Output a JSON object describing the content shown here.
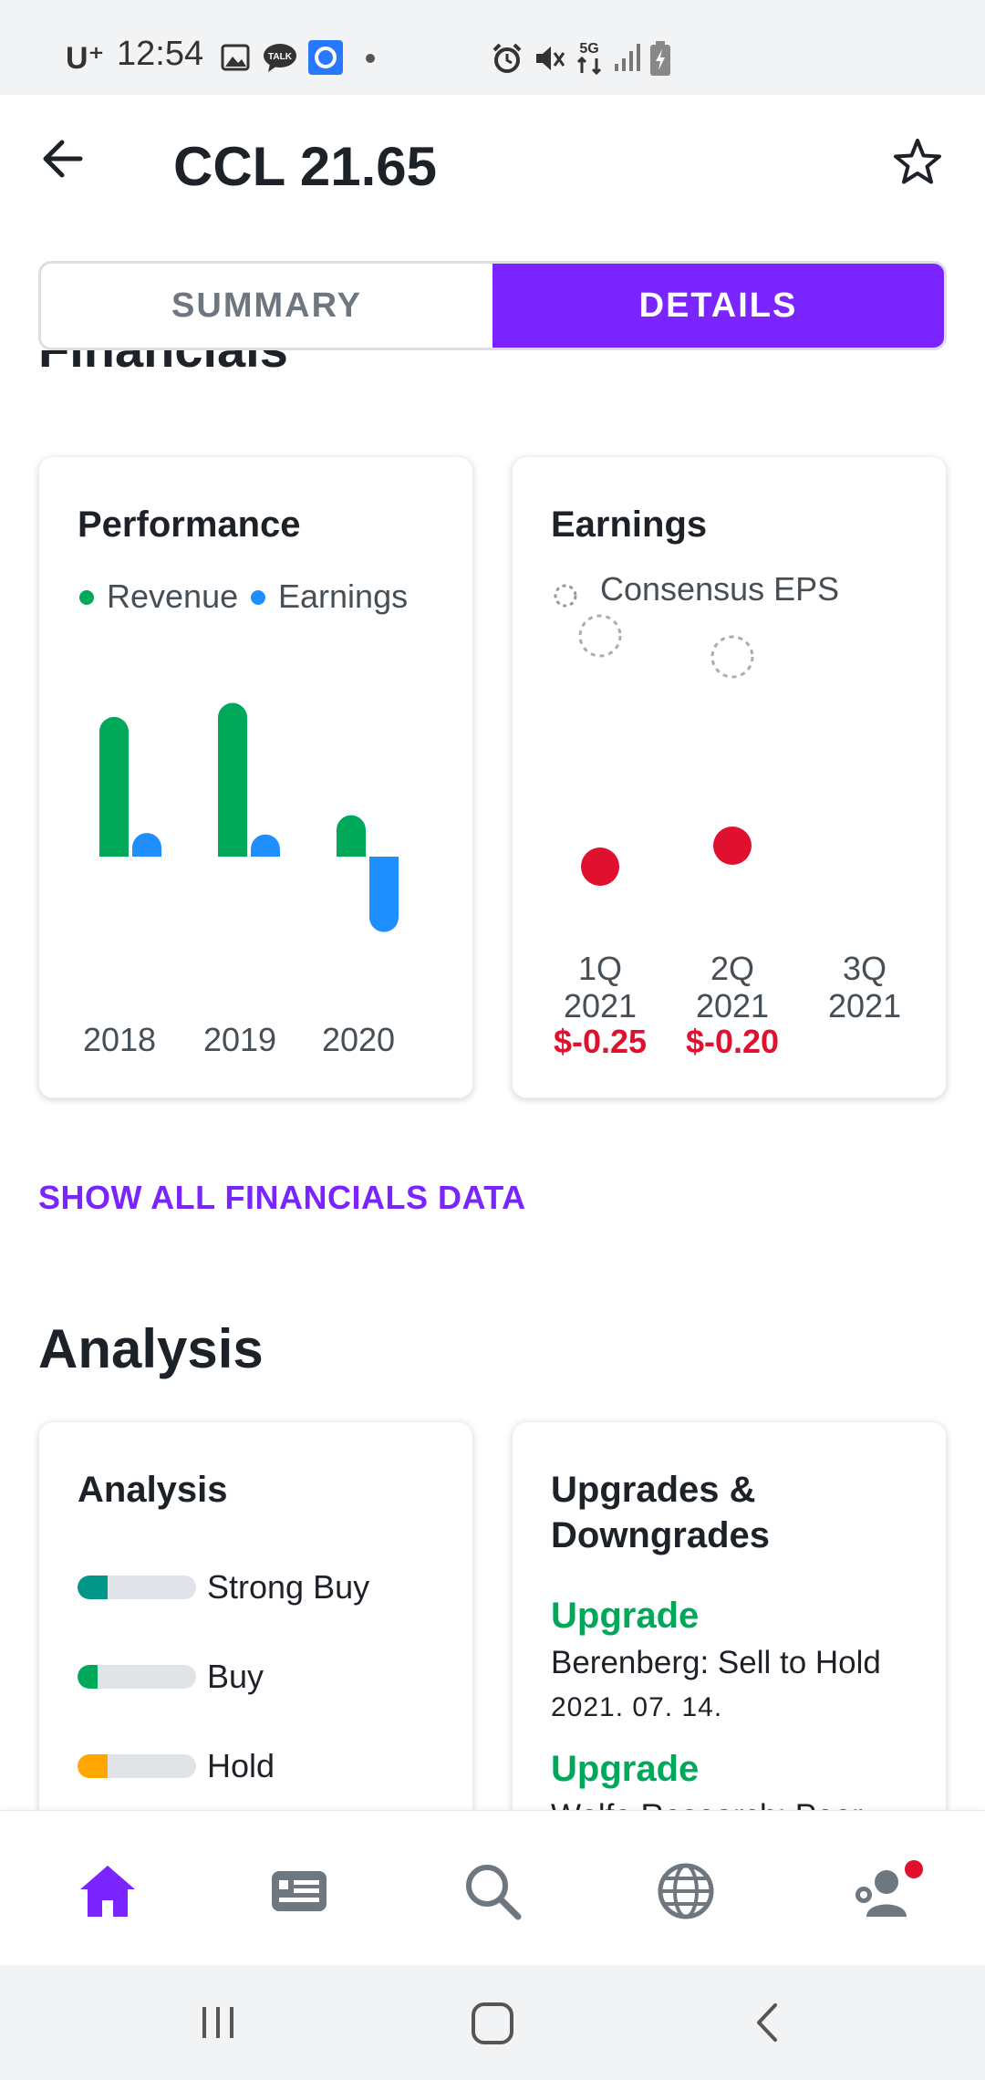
{
  "status_bar": {
    "carrier": "U⁺",
    "time": "12:54"
  },
  "header": {
    "title": "CCL 21.65"
  },
  "tabs": [
    {
      "label": "SUMMARY",
      "active": false
    },
    {
      "label": "DETAILS",
      "active": true
    }
  ],
  "financials": {
    "section_title": "Financials",
    "performance": {
      "title": "Performance",
      "legend": [
        "Revenue",
        "Earnings"
      ],
      "colors": {
        "revenue": "#00a85a",
        "earnings": "#1f8fff"
      }
    },
    "earnings": {
      "title": "Earnings",
      "legend": "Consensus EPS",
      "quarters": [
        {
          "label": "1Q\n2021",
          "line1": "1Q",
          "line2": "2021",
          "actual": "$-0.25"
        },
        {
          "label": "2Q\n2021",
          "line1": "2Q",
          "line2": "2021",
          "actual": "$-0.20"
        },
        {
          "label": "3Q\n2021",
          "line1": "3Q",
          "line2": "2021",
          "actual": ""
        }
      ]
    },
    "show_all_label": "SHOW ALL FINANCIALS DATA"
  },
  "chart_data": [
    {
      "type": "bar",
      "title": "Performance",
      "categories": [
        "2018",
        "2019",
        "2020"
      ],
      "series": [
        {
          "name": "Revenue",
          "values": [
            18.9,
            20.8,
            5.6
          ]
        },
        {
          "name": "Earnings",
          "values": [
            3.2,
            3.0,
            -10.2
          ]
        }
      ],
      "legend": "top-left",
      "grid": false
    },
    {
      "type": "scatter",
      "title": "Earnings",
      "categories": [
        "1Q 2021",
        "2Q 2021",
        "3Q 2021"
      ],
      "series": [
        {
          "name": "Consensus EPS",
          "values": [
            0.3,
            0.25,
            null
          ]
        },
        {
          "name": "Actual",
          "values": [
            -0.25,
            -0.2,
            null
          ]
        }
      ]
    }
  ],
  "analysis": {
    "section_title": "Analysis",
    "card_title": "Analysis",
    "ratings": [
      {
        "label": "Strong Buy",
        "share": 0.25,
        "color": "#009688"
      },
      {
        "label": "Buy",
        "share": 0.17,
        "color": "#00a85a"
      },
      {
        "label": "Hold",
        "share": 0.25,
        "color": "#ffa700"
      }
    ],
    "upgrades": {
      "title_line1": "Upgrades &",
      "title_line2": "Downgrades",
      "items": [
        {
          "type": "Upgrade",
          "firm": "Berenberg: Sell to Hold",
          "date": "2021. 07. 14."
        },
        {
          "type": "Upgrade",
          "firm": "Wolfe Research: Peer",
          "date": ""
        }
      ]
    }
  },
  "bottom_nav": [
    "home-icon",
    "news-icon",
    "search-icon",
    "globe-icon",
    "profile-icon"
  ],
  "accent_color": "#7a24ff"
}
